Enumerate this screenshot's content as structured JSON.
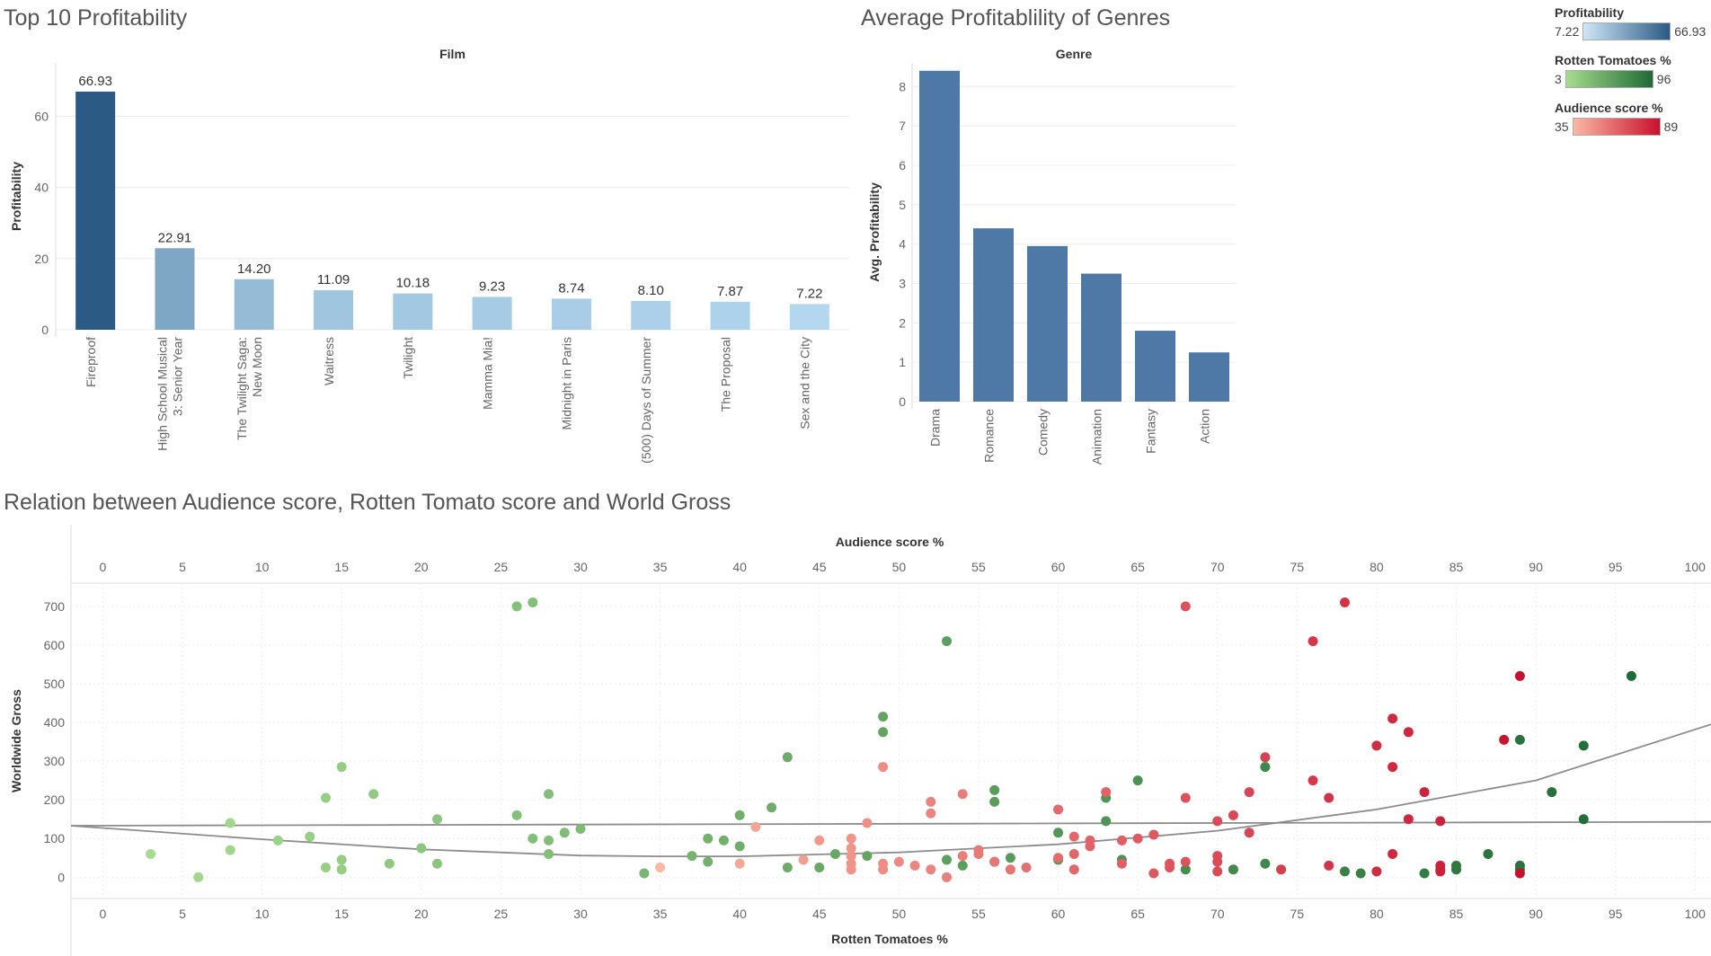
{
  "titles": {
    "top10": "Top 10 Profitability",
    "genres": "Average Profitablility of Genres",
    "scatter": "Relation between Audience score, Rotten Tomato score and World Gross"
  },
  "legends": [
    {
      "title": "Profitability",
      "min": "7.22",
      "max": "66.93",
      "from": "#cfe6f7",
      "to": "#2b5a85"
    },
    {
      "title": "Rotten Tomatoes %",
      "min": "3",
      "max": "96",
      "from": "#a6dc8f",
      "to": "#1f6b35"
    },
    {
      "title": "Audience  score %",
      "min": "35",
      "max": "89",
      "from": "#fbb8a3",
      "to": "#c8102e"
    }
  ],
  "chart_data": [
    {
      "type": "bar",
      "title": "Top 10 Profitability",
      "header": "Film",
      "ylabel": "Profitability",
      "ylim": [
        0,
        75
      ],
      "yticks": [
        0,
        20,
        40,
        60
      ],
      "categories": [
        [
          "Fireproof"
        ],
        [
          "High School Musical",
          "3: Senior Year"
        ],
        [
          "The Twilight Saga:",
          "New Moon"
        ],
        [
          "Waitress"
        ],
        [
          "Twilight"
        ],
        [
          "Mamma Mia!"
        ],
        [
          "Midnight in Paris"
        ],
        [
          "(500) Days of Summer"
        ],
        [
          "The Proposal"
        ],
        [
          "Sex and the City"
        ]
      ],
      "values": [
        66.93,
        22.91,
        14.2,
        11.09,
        10.18,
        9.23,
        8.74,
        8.1,
        7.87,
        7.22
      ],
      "value_labels": [
        "66.93",
        "22.91",
        "14.20",
        "11.09",
        "10.18",
        "9.23",
        "8.74",
        "8.10",
        "7.87",
        "7.22"
      ],
      "color_range": [
        "#b3d7ef",
        "#2b5a85"
      ]
    },
    {
      "type": "bar",
      "title": "Average Profitablility of Genres",
      "header": "Genre",
      "ylabel": "Avg. Profitability",
      "ylim": [
        0,
        8.6
      ],
      "yticks": [
        0,
        1,
        2,
        3,
        4,
        5,
        6,
        7,
        8
      ],
      "categories": [
        "Drama",
        "Romance",
        "Comedy",
        "Animation",
        "Fantasy",
        "Action"
      ],
      "values": [
        8.4,
        4.4,
        3.95,
        3.25,
        1.8,
        1.25
      ],
      "color": "#4e79a7"
    },
    {
      "type": "scatter",
      "title": "Relation between Audience score, Rotten Tomato score and World Gross",
      "x_top_label": "Audience  score %",
      "x_bottom_label": "Rotten Tomatoes %",
      "ylabel": "Worldwide Gross",
      "xlim": [
        -2,
        101
      ],
      "ylim": [
        -55,
        760
      ],
      "xticks": [
        0,
        5,
        10,
        15,
        20,
        25,
        30,
        35,
        40,
        45,
        50,
        55,
        60,
        65,
        70,
        75,
        80,
        85,
        90,
        95,
        100
      ],
      "yticks": [
        0,
        100,
        200,
        300,
        400,
        500,
        600,
        700
      ],
      "rotten_tomatoes_points": [
        [
          3,
          60
        ],
        [
          6,
          0
        ],
        [
          8,
          140
        ],
        [
          8,
          70
        ],
        [
          11,
          95
        ],
        [
          13,
          105
        ],
        [
          14,
          205
        ],
        [
          14,
          25
        ],
        [
          15,
          285
        ],
        [
          15,
          45
        ],
        [
          15,
          20
        ],
        [
          17,
          215
        ],
        [
          18,
          35
        ],
        [
          20,
          75
        ],
        [
          21,
          150
        ],
        [
          21,
          35
        ],
        [
          26,
          700
        ],
        [
          26,
          160
        ],
        [
          27,
          710
        ],
        [
          27,
          100
        ],
        [
          28,
          95
        ],
        [
          28,
          215
        ],
        [
          28,
          60
        ],
        [
          29,
          115
        ],
        [
          30,
          125
        ],
        [
          34,
          10
        ],
        [
          37,
          55
        ],
        [
          38,
          100
        ],
        [
          38,
          40
        ],
        [
          39,
          95
        ],
        [
          40,
          160
        ],
        [
          40,
          80
        ],
        [
          42,
          180
        ],
        [
          43,
          310
        ],
        [
          43,
          25
        ],
        [
          45,
          25
        ],
        [
          46,
          60
        ],
        [
          48,
          55
        ],
        [
          49,
          415
        ],
        [
          49,
          375
        ],
        [
          53,
          610
        ],
        [
          53,
          45
        ],
        [
          54,
          30
        ],
        [
          56,
          225
        ],
        [
          56,
          195
        ],
        [
          56,
          40
        ],
        [
          57,
          50
        ],
        [
          60,
          115
        ],
        [
          60,
          45
        ],
        [
          63,
          205
        ],
        [
          63,
          145
        ],
        [
          64,
          45
        ],
        [
          65,
          250
        ],
        [
          68,
          20
        ],
        [
          71,
          20
        ],
        [
          73,
          285
        ],
        [
          73,
          35
        ],
        [
          78,
          15
        ],
        [
          79,
          10
        ],
        [
          83,
          10
        ],
        [
          84,
          20
        ],
        [
          85,
          30
        ],
        [
          85,
          20
        ],
        [
          87,
          60
        ],
        [
          89,
          355
        ],
        [
          89,
          30
        ],
        [
          89,
          20
        ],
        [
          91,
          220
        ],
        [
          93,
          340
        ],
        [
          93,
          150
        ],
        [
          96,
          520
        ]
      ],
      "audience_points": [
        [
          35,
          25
        ],
        [
          40,
          35
        ],
        [
          41,
          130
        ],
        [
          44,
          45
        ],
        [
          45,
          95
        ],
        [
          47,
          100
        ],
        [
          47,
          75
        ],
        [
          47,
          55
        ],
        [
          47,
          35
        ],
        [
          47,
          20
        ],
        [
          48,
          140
        ],
        [
          49,
          285
        ],
        [
          49,
          35
        ],
        [
          49,
          20
        ],
        [
          50,
          40
        ],
        [
          51,
          30
        ],
        [
          52,
          195
        ],
        [
          52,
          165
        ],
        [
          52,
          20
        ],
        [
          53,
          0
        ],
        [
          54,
          215
        ],
        [
          54,
          55
        ],
        [
          55,
          70
        ],
        [
          55,
          60
        ],
        [
          56,
          40
        ],
        [
          57,
          20
        ],
        [
          58,
          25
        ],
        [
          60,
          175
        ],
        [
          60,
          50
        ],
        [
          61,
          105
        ],
        [
          61,
          60
        ],
        [
          61,
          20
        ],
        [
          62,
          95
        ],
        [
          62,
          80
        ],
        [
          63,
          220
        ],
        [
          64,
          95
        ],
        [
          64,
          35
        ],
        [
          65,
          100
        ],
        [
          66,
          110
        ],
        [
          66,
          10
        ],
        [
          67,
          35
        ],
        [
          67,
          25
        ],
        [
          68,
          700
        ],
        [
          68,
          205
        ],
        [
          68,
          40
        ],
        [
          70,
          145
        ],
        [
          70,
          55
        ],
        [
          70,
          40
        ],
        [
          70,
          15
        ],
        [
          71,
          160
        ],
        [
          72,
          220
        ],
        [
          72,
          115
        ],
        [
          73,
          310
        ],
        [
          74,
          20
        ],
        [
          76,
          610
        ],
        [
          76,
          250
        ],
        [
          77,
          205
        ],
        [
          77,
          30
        ],
        [
          78,
          710
        ],
        [
          80,
          340
        ],
        [
          80,
          15
        ],
        [
          81,
          410
        ],
        [
          81,
          285
        ],
        [
          81,
          60
        ],
        [
          82,
          375
        ],
        [
          82,
          150
        ],
        [
          83,
          220
        ],
        [
          84,
          145
        ],
        [
          84,
          30
        ],
        [
          84,
          15
        ],
        [
          88,
          355
        ],
        [
          89,
          520
        ],
        [
          89,
          10
        ]
      ],
      "reference_lines": [
        {
          "kind": "linear",
          "points": [
            [
              -2,
              133
            ],
            [
              101,
              143
            ]
          ]
        },
        {
          "kind": "polynomial",
          "points": [
            [
              -2,
              133
            ],
            [
              10,
              98
            ],
            [
              20,
              72
            ],
            [
              30,
              56
            ],
            [
              35,
              54
            ],
            [
              40,
              54
            ],
            [
              50,
              64
            ],
            [
              60,
              85
            ],
            [
              70,
              120
            ],
            [
              80,
              175
            ],
            [
              90,
              250
            ],
            [
              101,
              395
            ]
          ]
        }
      ],
      "rotten_color_range": [
        "#a6dc8f",
        "#1f6b35"
      ],
      "audience_color_range": [
        "#fbb8a3",
        "#c8102e"
      ]
    }
  ]
}
